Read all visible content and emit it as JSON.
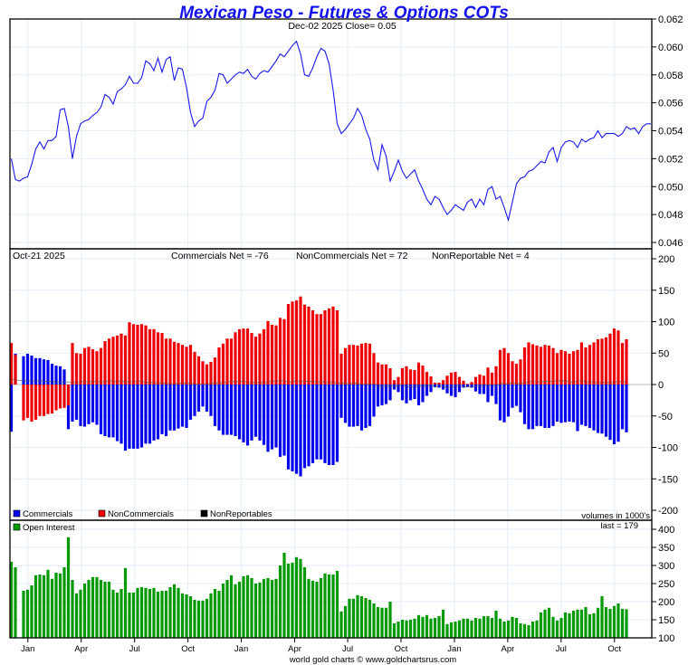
{
  "colors": {
    "title": "#1111ee",
    "price_line": "#1a1aee",
    "commercials": "#0000ee",
    "noncommercials": "#ee0000",
    "nonreportables": "#000000",
    "open_interest": "#009900",
    "grid": "#e4eef8"
  },
  "chart_data": [
    {
      "type": "line",
      "panel": "price",
      "title": "Mexican Peso - Futures & Options COTs",
      "subtitle": "Dec-02  2025   Close= 0.05",
      "ylim": [
        0.046,
        0.062
      ],
      "y_ticks": [
        "0.062",
        "0.060",
        "0.058",
        "0.056",
        "0.054",
        "0.052",
        "0.050",
        "0.048",
        "0.046"
      ],
      "y_tick_values": [
        0.062,
        0.06,
        0.058,
        0.056,
        0.054,
        0.052,
        0.05,
        0.048,
        0.046
      ],
      "grid": true,
      "series": [
        {
          "name": "Price",
          "values": [
            0.052,
            0.0505,
            0.0504,
            0.0506,
            0.0507,
            0.0516,
            0.0527,
            0.0532,
            0.0527,
            0.0533,
            0.0533,
            0.0536,
            0.0555,
            0.0556,
            0.0543,
            0.052,
            0.0536,
            0.0545,
            0.0547,
            0.0548,
            0.0551,
            0.0553,
            0.0557,
            0.0566,
            0.0564,
            0.0559,
            0.0568,
            0.057,
            0.0573,
            0.0579,
            0.0574,
            0.0574,
            0.0578,
            0.059,
            0.0588,
            0.0583,
            0.0592,
            0.0582,
            0.0591,
            0.0593,
            0.0576,
            0.0585,
            0.0584,
            0.0571,
            0.0553,
            0.0543,
            0.0547,
            0.0549,
            0.0561,
            0.0564,
            0.0569,
            0.0581,
            0.058,
            0.0574,
            0.0577,
            0.058,
            0.0582,
            0.0581,
            0.0584,
            0.0579,
            0.0577,
            0.0581,
            0.0583,
            0.0582,
            0.0586,
            0.059,
            0.0595,
            0.0593,
            0.0597,
            0.0601,
            0.0604,
            0.0595,
            0.058,
            0.0579,
            0.0585,
            0.0593,
            0.0599,
            0.0597,
            0.0588,
            0.0569,
            0.0545,
            0.0538,
            0.0541,
            0.0545,
            0.0549,
            0.0556,
            0.0551,
            0.0541,
            0.0534,
            0.0519,
            0.0512,
            0.053,
            0.0522,
            0.0504,
            0.0511,
            0.0519,
            0.0511,
            0.0506,
            0.0509,
            0.0512,
            0.0504,
            0.0498,
            0.0491,
            0.0487,
            0.0493,
            0.0491,
            0.0485,
            0.048,
            0.0483,
            0.0487,
            0.0485,
            0.0483,
            0.0489,
            0.0491,
            0.0485,
            0.0491,
            0.0487,
            0.0498,
            0.05,
            0.0491,
            0.0493,
            0.0485,
            0.0476,
            0.0489,
            0.0502,
            0.0506,
            0.0507,
            0.0511,
            0.0512,
            0.0515,
            0.0518,
            0.0517,
            0.0525,
            0.0528,
            0.0518,
            0.0528,
            0.0532,
            0.0533,
            0.0532,
            0.0528,
            0.0534,
            0.0532,
            0.0534,
            0.0535,
            0.054,
            0.0535,
            0.0538,
            0.0538,
            0.0538,
            0.0536,
            0.0538,
            0.0543,
            0.0541,
            0.0542,
            0.0538,
            0.0543,
            0.0545,
            0.0545
          ]
        }
      ]
    },
    {
      "type": "bar",
      "panel": "cot",
      "date_label": "Oct-21  2025",
      "summary": {
        "commercials": "Commercials Net = -76",
        "noncommercials": "NonCommercials Net = 72",
        "nonreportables": "NonReportable Net = 4"
      },
      "ylim": [
        -200,
        200
      ],
      "y_ticks": [
        "200",
        "150",
        "100",
        "50",
        "0",
        "-50",
        "-100",
        "-150",
        "-200"
      ],
      "y_tick_values": [
        200,
        150,
        100,
        50,
        0,
        -50,
        -100,
        -150,
        -200
      ],
      "units_note": "volumes in 1000's",
      "legend": [
        "Commercials",
        "NonCommercials",
        "NonReportables"
      ],
      "legend_position": "bottom-left",
      "missing_index": [
        2
      ],
      "series": [
        {
          "name": "Commercials",
          "values": [
            -75,
            49,
            null,
            45,
            49,
            46,
            42,
            42,
            40,
            39,
            33,
            30,
            29,
            24,
            -71,
            -59,
            -56,
            -66,
            -67,
            -63,
            -60,
            -64,
            -79,
            -82,
            -84,
            -84,
            -90,
            -94,
            -105,
            -102,
            -102,
            -102,
            -100,
            -94,
            -94,
            -89,
            -87,
            -79,
            -82,
            -73,
            -73,
            -70,
            -67,
            -69,
            -56,
            -50,
            -43,
            -35,
            -43,
            -50,
            -66,
            -73,
            -80,
            -80,
            -80,
            -82,
            -87,
            -92,
            -97,
            -89,
            -83,
            -89,
            -96,
            -107,
            -103,
            -100,
            -115,
            -113,
            -135,
            -138,
            -142,
            -146,
            -133,
            -130,
            -125,
            -119,
            -119,
            -125,
            -128,
            -128,
            -123,
            -53,
            -61,
            -67,
            -67,
            -66,
            -73,
            -69,
            -66,
            -51,
            -35,
            -33,
            -31,
            -25,
            -8,
            -12,
            -25,
            -30,
            -25,
            -23,
            -33,
            -28,
            -18,
            -12,
            -4,
            -5,
            -8,
            -14,
            -18,
            -20,
            -12,
            -5,
            -4,
            -5,
            -11,
            -15,
            -15,
            -28,
            -18,
            -31,
            -57,
            -60,
            -51,
            -37,
            -34,
            -44,
            -63,
            -71,
            -71,
            -66,
            -66,
            -69,
            -69,
            -66,
            -59,
            -61,
            -60,
            -59,
            -60,
            -74,
            -64,
            -66,
            -69,
            -73,
            -77,
            -78,
            -83,
            -88,
            -95,
            -91,
            -71,
            -76
          ]
        },
        {
          "name": "NonCommercials",
          "values": [
            66,
            47,
            null,
            -57,
            -53,
            -59,
            -56,
            -50,
            -50,
            -47,
            -46,
            -41,
            -38,
            -37,
            -33,
            66,
            50,
            49,
            58,
            60,
            56,
            53,
            58,
            69,
            73,
            76,
            78,
            81,
            78,
            99,
            96,
            95,
            96,
            94,
            88,
            88,
            83,
            82,
            73,
            73,
            68,
            66,
            63,
            60,
            63,
            52,
            45,
            37,
            32,
            36,
            43,
            59,
            65,
            73,
            73,
            83,
            88,
            89,
            89,
            82,
            76,
            81,
            88,
            101,
            95,
            94,
            106,
            104,
            128,
            132,
            134,
            140,
            127,
            124,
            118,
            112,
            112,
            118,
            121,
            124,
            118,
            49,
            58,
            63,
            63,
            62,
            65,
            66,
            65,
            50,
            35,
            32,
            32,
            26,
            7,
            12,
            26,
            29,
            24,
            23,
            35,
            30,
            20,
            13,
            3,
            3,
            7,
            14,
            19,
            20,
            12,
            6,
            1,
            4,
            12,
            16,
            14,
            27,
            19,
            29,
            55,
            58,
            50,
            37,
            33,
            40,
            59,
            67,
            64,
            62,
            60,
            63,
            62,
            58,
            50,
            55,
            53,
            49,
            53,
            55,
            67,
            59,
            63,
            67,
            72,
            73,
            75,
            81,
            89,
            86,
            66,
            72
          ]
        },
        {
          "name": "NonReportables",
          "values": [
            9,
            7,
            null,
            6,
            5,
            6,
            5,
            6,
            5,
            5,
            5,
            4,
            4,
            4,
            4,
            3,
            4,
            4,
            5,
            4,
            5,
            5,
            4,
            4,
            6,
            5,
            4,
            6,
            4,
            5,
            4,
            5,
            5,
            3,
            4,
            3,
            3,
            2,
            2,
            1,
            1,
            2,
            2,
            2,
            2,
            1,
            0,
            1,
            1,
            2,
            2,
            3,
            3,
            4,
            5,
            4,
            5,
            5,
            4,
            3,
            4,
            3,
            3,
            4,
            5,
            5,
            6,
            6,
            4,
            4,
            6,
            4,
            5,
            5,
            5,
            4,
            4,
            4,
            4,
            3,
            3,
            2,
            2,
            1,
            2,
            2,
            0,
            1,
            1,
            1,
            -2,
            -3,
            -3,
            -2,
            -3,
            -2,
            -1,
            -3,
            -4,
            -3,
            -2,
            -3,
            -2,
            -2,
            -4,
            -2,
            -3,
            -5,
            -4,
            -3,
            -2,
            -3,
            -4,
            -4,
            -3,
            -2,
            -2,
            -1,
            -1,
            -2,
            2,
            1,
            1,
            3,
            1,
            2,
            3,
            4,
            5,
            4,
            4,
            5,
            5,
            5,
            6,
            5,
            6,
            4,
            4,
            5,
            6,
            4,
            4,
            4,
            3,
            3,
            4,
            3,
            4,
            5,
            4,
            4
          ]
        }
      ]
    },
    {
      "type": "bar",
      "panel": "open_interest",
      "legend": [
        "Open Interest"
      ],
      "last_label": "last = 179",
      "ylim": [
        100,
        400
      ],
      "y_ticks": [
        "400",
        "350",
        "300",
        "250",
        "200",
        "150",
        "100"
      ],
      "y_tick_values": [
        400,
        350,
        300,
        250,
        200,
        150,
        100
      ],
      "x_ticks": [
        "Jan",
        "Apr",
        "Jul",
        "Oct",
        "Jan",
        "Apr",
        "Jul",
        "Oct",
        "Jan",
        "Apr",
        "Jul",
        "Oct"
      ],
      "x_tick_positions": [
        4.4,
        17.5,
        30.6,
        43.7,
        56.8,
        69.9,
        82.9,
        96.0,
        109.1,
        122.2,
        135.3,
        148.4
      ],
      "series": [
        {
          "name": "Open Interest",
          "values": [
            310,
            295,
            null,
            230,
            233,
            245,
            273,
            275,
            273,
            288,
            263,
            280,
            278,
            295,
            378,
            260,
            223,
            233,
            250,
            260,
            268,
            268,
            260,
            255,
            255,
            233,
            225,
            235,
            293,
            225,
            225,
            238,
            240,
            238,
            235,
            238,
            228,
            230,
            230,
            240,
            248,
            238,
            223,
            220,
            215,
            205,
            203,
            203,
            208,
            223,
            235,
            230,
            250,
            260,
            273,
            248,
            255,
            270,
            273,
            265,
            250,
            253,
            263,
            265,
            260,
            263,
            300,
            335,
            305,
            308,
            323,
            318,
            295,
            263,
            258,
            255,
            265,
            278,
            275,
            275,
            285,
            173,
            188,
            208,
            208,
            218,
            215,
            210,
            205,
            195,
            185,
            183,
            183,
            200,
            140,
            145,
            150,
            148,
            150,
            153,
            163,
            158,
            163,
            153,
            155,
            160,
            178,
            138,
            143,
            145,
            148,
            153,
            153,
            148,
            155,
            153,
            160,
            160,
            155,
            175,
            153,
            145,
            148,
            158,
            155,
            140,
            138,
            135,
            145,
            148,
            170,
            178,
            183,
            158,
            148,
            155,
            170,
            168,
            175,
            178,
            178,
            185,
            165,
            168,
            183,
            215,
            185,
            180,
            188,
            195,
            180,
            179
          ]
        }
      ]
    }
  ],
  "footer": "world gold charts © www.goldchartsrus.com"
}
